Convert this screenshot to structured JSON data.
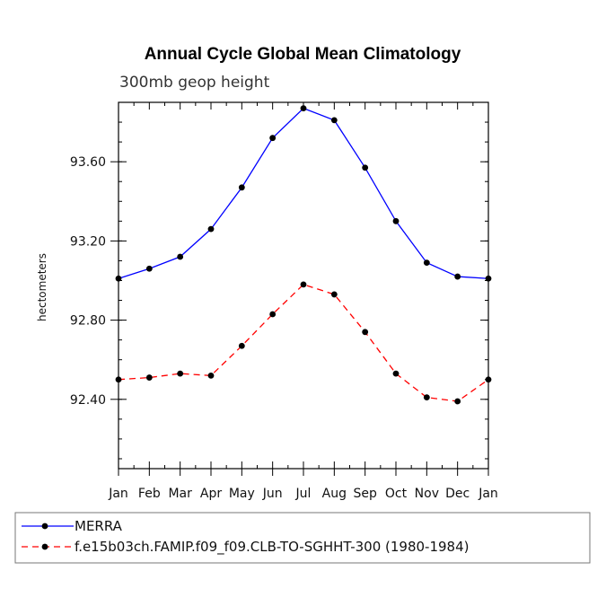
{
  "chart_data": {
    "type": "line",
    "title": "Annual Cycle Global Mean Climatology",
    "subtitle": "300mb geop height",
    "ylabel": "hectometers",
    "xlabel": "",
    "categories": [
      "Jan",
      "Feb",
      "Mar",
      "Apr",
      "May",
      "Jun",
      "Jul",
      "Aug",
      "Sep",
      "Oct",
      "Nov",
      "Dec",
      "Jan"
    ],
    "ylim": [
      92.05,
      93.9
    ],
    "yticks": [
      92.4,
      92.8,
      93.2,
      93.6
    ],
    "ytick_labels": [
      "92.40",
      "92.80",
      "93.20",
      "93.60"
    ],
    "y_minor_step": 0.1,
    "grid": false,
    "legend_position": "bottom",
    "series": [
      {
        "name": "MERRA",
        "color": "#0000ff",
        "line_style": "solid",
        "marker": "filled-circle",
        "values": [
          93.01,
          93.06,
          93.12,
          93.26,
          93.47,
          93.72,
          93.87,
          93.81,
          93.57,
          93.3,
          93.09,
          93.02,
          93.01
        ]
      },
      {
        "name": "f.e15b03ch.FAMIP.f09_f09.CLB-TO-SGHHT-300 (1980-1984)",
        "color": "#ff0000",
        "line_style": "dashed",
        "marker": "filled-circle",
        "values": [
          92.5,
          92.51,
          92.53,
          92.52,
          92.67,
          92.83,
          92.98,
          92.93,
          92.74,
          92.53,
          92.41,
          92.39,
          92.5
        ]
      }
    ]
  }
}
